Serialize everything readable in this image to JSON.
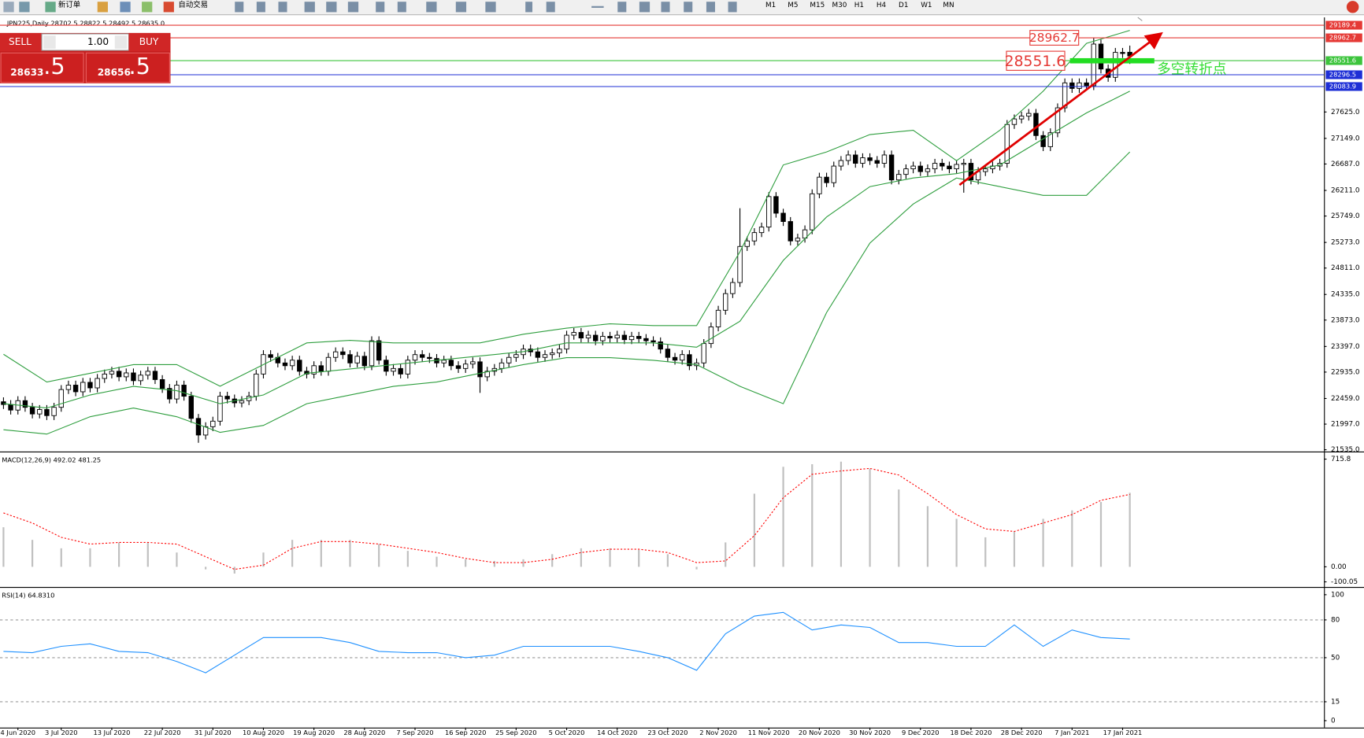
{
  "toolbar": {
    "new_order": "新订单",
    "auto_trading": "自动交易",
    "timeframes": [
      "M1",
      "M5",
      "M15",
      "M30",
      "H1",
      "H4",
      "D1",
      "W1",
      "MN"
    ]
  },
  "trade_panel": {
    "sell": "SELL",
    "lot": "1.00",
    "buy": "BUY",
    "sell_price": {
      "main": "28633",
      "fraction": ".5"
    },
    "buy_price": {
      "main": "28656",
      "fraction": ".5"
    }
  },
  "chart_data": [
    {
      "type": "candlestick",
      "title": "JPN225,Daily  28702.5 28822.5 28492.5 28635.0",
      "categories": [
        null,
        null,
        "4 Jun 2020",
        null,
        null,
        null,
        null,
        null,
        "3 Jul 2020",
        null,
        null,
        null,
        null,
        null,
        null,
        "13 Jul 2020",
        null,
        null,
        null,
        null,
        null,
        null,
        "22 Jul 2020",
        null,
        null,
        null,
        null,
        null,
        null,
        "31 Jul 2020",
        null,
        null,
        null,
        null,
        null,
        null,
        "10 Aug 2020",
        null,
        null,
        null,
        null,
        null,
        null,
        "19 Aug 2020",
        null,
        null,
        null,
        null,
        null,
        null,
        "28 Aug 2020",
        null,
        null,
        null,
        null,
        null,
        null,
        "7 Sep 2020",
        null,
        null,
        null,
        null,
        null,
        null,
        "16 Sep 2020",
        null,
        null,
        null,
        null,
        null,
        null,
        "25 Sep 2020",
        null,
        null,
        null,
        null,
        null,
        null,
        "5 Oct 2020",
        null,
        null,
        null,
        null,
        null,
        null,
        "14 Oct 2020",
        null,
        null,
        null,
        null,
        null,
        null,
        "23 Oct 2020",
        null,
        null,
        null,
        null,
        null,
        null,
        "2 Nov 2020",
        null,
        null,
        null,
        null,
        null,
        null,
        "11 Nov 2020",
        null,
        null,
        null,
        null,
        null,
        null,
        "20 Nov 2020",
        null,
        null,
        null,
        null,
        null,
        null,
        "30 Nov 2020",
        null,
        null,
        null,
        null,
        null,
        null,
        "9 Dec 2020",
        null,
        null,
        null,
        null,
        null,
        null,
        "18 Dec 2020",
        null,
        null,
        null,
        null,
        null,
        null,
        "28 Dec 2020",
        null,
        null,
        null,
        null,
        null,
        null,
        "7 Jan 2021",
        null,
        null,
        null,
        null,
        null,
        null,
        "17 Jan 2021",
        null
      ],
      "open": [
        22400,
        22350,
        22250,
        22420,
        22300,
        22180,
        22260,
        22150,
        22300,
        22620,
        22700,
        22580,
        22750,
        22650,
        22820,
        22900,
        22950,
        22850,
        22920,
        22780,
        22880,
        22950,
        22800,
        22640,
        22450,
        22700,
        22500,
        22100,
        21800,
        21950,
        22050,
        22500,
        22450,
        22380,
        22420,
        22500,
        22900,
        23250,
        23200,
        23100,
        23050,
        23150,
        22950,
        22900,
        23050,
        22950,
        23200,
        23300,
        23250,
        23100,
        23220,
        23050,
        23500,
        23150,
        22950,
        23000,
        22900,
        23150,
        23250,
        23200,
        23180,
        23100,
        23150,
        23050,
        23000,
        23080,
        23120,
        22850,
        22950,
        23000,
        23100,
        23200,
        23250,
        23350,
        23300,
        23200,
        23250,
        23280,
        23350,
        23600,
        23650,
        23550,
        23600,
        23500,
        23580,
        23550,
        23600,
        23520,
        23580,
        23540,
        23500,
        23480,
        23350,
        23200,
        23150,
        23250,
        23050,
        23100,
        23450,
        23750,
        24050,
        24350,
        24550,
        25200,
        25300,
        25450,
        25550,
        26100,
        25800,
        25650,
        25300,
        25350,
        25500,
        26150,
        26450,
        26350,
        26650,
        26750,
        26850,
        26700,
        26800,
        26750,
        26700,
        26850,
        26400,
        26500,
        26600,
        26650,
        26550,
        26600,
        26700,
        26650,
        26600,
        26680,
        26700,
        26400,
        26550,
        26600,
        26650,
        26700,
        27400,
        27500,
        27550,
        27600,
        27200,
        27000,
        27250,
        27700,
        28150,
        28050,
        28150,
        28100,
        28850,
        28400,
        28250,
        28700,
        28702.5
      ],
      "high": [
        22480,
        22430,
        22500,
        22500,
        22380,
        22340,
        22340,
        22380,
        22700,
        22780,
        22780,
        22830,
        22830,
        22900,
        22980,
        23030,
        23030,
        23000,
        23000,
        22960,
        23030,
        23030,
        22880,
        22720,
        22780,
        22780,
        22580,
        22180,
        22030,
        22130,
        22580,
        22580,
        22530,
        22500,
        22580,
        22980,
        23330,
        23330,
        23280,
        23180,
        23230,
        23230,
        23030,
        23130,
        23130,
        23280,
        23380,
        23380,
        23330,
        23300,
        23300,
        23580,
        23580,
        23230,
        23080,
        23080,
        23230,
        23330,
        23330,
        23280,
        23260,
        23230,
        23230,
        23130,
        23160,
        23200,
        23200,
        23030,
        23080,
        23180,
        23280,
        23330,
        23430,
        23430,
        23380,
        23330,
        23360,
        23430,
        23680,
        23730,
        23730,
        23680,
        23680,
        23660,
        23660,
        23680,
        23680,
        23660,
        23660,
        23620,
        23580,
        23560,
        23430,
        23280,
        23330,
        23330,
        23180,
        23530,
        23830,
        24130,
        24430,
        24630,
        25890,
        25380,
        25530,
        25630,
        26180,
        26180,
        25880,
        25730,
        25430,
        25580,
        26230,
        26530,
        26530,
        26730,
        26830,
        26930,
        26930,
        26880,
        26880,
        26830,
        26930,
        26930,
        26580,
        26680,
        26730,
        26730,
        26680,
        26780,
        26780,
        26730,
        26760,
        26780,
        26780,
        26630,
        26680,
        26730,
        26780,
        27480,
        27580,
        27630,
        27680,
        27680,
        27280,
        27330,
        27780,
        28230,
        28230,
        28230,
        28230,
        28960,
        28930,
        28480,
        28780,
        28780,
        28822.5
      ],
      "low": [
        22270,
        22170,
        22170,
        22220,
        22100,
        22100,
        22070,
        22070,
        22220,
        22540,
        22500,
        22500,
        22570,
        22570,
        22740,
        22820,
        22770,
        22770,
        22700,
        22700,
        22800,
        22720,
        22560,
        22370,
        22370,
        22420,
        22020,
        21660,
        21720,
        21870,
        21970,
        22370,
        22300,
        22300,
        22340,
        22420,
        22820,
        23120,
        23020,
        22970,
        22970,
        22870,
        22820,
        22820,
        22870,
        22870,
        23120,
        23170,
        23020,
        23020,
        22970,
        22970,
        23070,
        22870,
        22870,
        22820,
        22820,
        23070,
        23120,
        23100,
        23020,
        23020,
        22970,
        22920,
        22920,
        23000,
        22560,
        22770,
        22870,
        22920,
        23020,
        23120,
        23170,
        23220,
        23120,
        23120,
        23170,
        23200,
        23270,
        23520,
        23470,
        23470,
        23420,
        23420,
        23470,
        23470,
        23440,
        23440,
        23460,
        23420,
        23400,
        23270,
        23120,
        23070,
        23070,
        22970,
        22970,
        23020,
        23370,
        23670,
        23970,
        24270,
        24470,
        25120,
        25220,
        25370,
        25470,
        25720,
        25570,
        25220,
        25220,
        25270,
        25420,
        26070,
        26270,
        26270,
        26570,
        26670,
        26620,
        26620,
        26670,
        26620,
        26620,
        26320,
        26320,
        26420,
        26520,
        26470,
        26470,
        26520,
        26570,
        26520,
        26520,
        26170,
        26320,
        26320,
        26470,
        26520,
        26570,
        26620,
        27320,
        27420,
        27470,
        27120,
        26920,
        26920,
        27170,
        27620,
        27970,
        27970,
        28020,
        28020,
        28320,
        28170,
        28170,
        28600,
        28492.5
      ],
      "close": [
        22350,
        22250,
        22420,
        22300,
        22180,
        22260,
        22150,
        22300,
        22620,
        22700,
        22580,
        22750,
        22650,
        22820,
        22900,
        22950,
        22850,
        22920,
        22780,
        22880,
        22950,
        22800,
        22640,
        22450,
        22700,
        22500,
        22100,
        21800,
        21950,
        22050,
        22500,
        22450,
        22380,
        22420,
        22500,
        22900,
        23250,
        23200,
        23100,
        23050,
        23150,
        22950,
        22900,
        23050,
        22950,
        23200,
        23300,
        23250,
        23100,
        23220,
        23050,
        23500,
        23150,
        22950,
        23000,
        22900,
        23150,
        23250,
        23200,
        23180,
        23100,
        23150,
        23050,
        23000,
        23080,
        23120,
        22850,
        22950,
        23000,
        23100,
        23200,
        23250,
        23350,
        23300,
        23200,
        23250,
        23280,
        23350,
        23600,
        23650,
        23550,
        23600,
        23500,
        23580,
        23550,
        23600,
        23520,
        23580,
        23540,
        23500,
        23480,
        23350,
        23200,
        23150,
        23250,
        23050,
        23100,
        23450,
        23750,
        24050,
        24350,
        24550,
        25200,
        25300,
        25450,
        25550,
        26100,
        25800,
        25650,
        25300,
        25350,
        25500,
        26150,
        26450,
        26350,
        26650,
        26750,
        26850,
        26700,
        26800,
        26750,
        26700,
        26850,
        26400,
        26500,
        26600,
        26650,
        26550,
        26600,
        26700,
        26650,
        26600,
        26680,
        26700,
        26400,
        26550,
        26600,
        26650,
        26700,
        27400,
        27500,
        27550,
        27600,
        27200,
        27000,
        27250,
        27700,
        28150,
        28050,
        28150,
        28100,
        28850,
        28400,
        28250,
        28700,
        28680,
        28635
      ],
      "up_color": "#ffffff",
      "down_color": "#000000",
      "bollinger": {
        "color": "#2e9e3e",
        "x": [
          0,
          6,
          12,
          18,
          24,
          30,
          36,
          42,
          48,
          54,
          60,
          66,
          72,
          78,
          84,
          90,
          96,
          102,
          108,
          114,
          120,
          126,
          132,
          138,
          144,
          150,
          156
        ],
        "upper": [
          23257,
          22756,
          22913,
          23070,
          23070,
          22680,
          23070,
          23461,
          23508,
          23461,
          23461,
          23461,
          23617,
          23727,
          23805,
          23774,
          23774,
          25105,
          26670,
          26905,
          27218,
          27296,
          26748,
          27296,
          28000,
          28862,
          29096
        ],
        "middle": [
          22365,
          22287,
          22522,
          22678,
          22600,
          22365,
          22522,
          22913,
          22991,
          23070,
          23148,
          23226,
          23304,
          23461,
          23461,
          23461,
          23383,
          23852,
          24948,
          25731,
          26279,
          26435,
          26514,
          26670,
          27140,
          27609,
          28000
        ],
        "lower": [
          21895,
          21817,
          22130,
          22287,
          22130,
          21848,
          21973,
          22365,
          22522,
          22678,
          22756,
          22913,
          23070,
          23195,
          23195,
          23148,
          23070,
          22678,
          22365,
          24009,
          25261,
          25966,
          26435,
          26279,
          26122,
          26122,
          26905
        ]
      },
      "levels": [
        {
          "value": 29189.4,
          "color": "#e53935"
        },
        {
          "value": 28962.7,
          "color": "#e53935"
        },
        {
          "value": 28551.6,
          "color": "#3cc43c"
        },
        {
          "value": 28296.5,
          "color": "#1e2fd6"
        },
        {
          "value": 28083.9,
          "color": "#1e2fd6"
        }
      ],
      "annotations": {
        "boxes": [
          28962.7,
          28551.6
        ],
        "note": "多空转折点"
      },
      "ylim": [
        21519,
        29300
      ],
      "yticks": [
        {
          "value": 21535,
          "label": "21535.0"
        },
        {
          "value": 21997,
          "label": "21997.0"
        },
        {
          "value": 22459,
          "label": "22459.0"
        },
        {
          "value": 22935,
          "label": "22935.0"
        },
        {
          "value": 23397,
          "label": "23397.0"
        },
        {
          "value": 23873,
          "label": "23873.0"
        },
        {
          "value": 24335,
          "label": "24335.0"
        },
        {
          "value": 24811,
          "label": "24811.0"
        },
        {
          "value": 25273,
          "label": "25273.0"
        },
        {
          "value": 25749,
          "label": "25749.0"
        },
        {
          "value": 26211,
          "label": "26211.0"
        },
        {
          "value": 26687,
          "label": "26687.0"
        },
        {
          "value": 27149,
          "label": "27149.0"
        },
        {
          "value": 27625,
          "label": "27625.0"
        }
      ]
    },
    {
      "type": "macd",
      "title": "MACD(12,26,9) 492.02 481.25",
      "x": [
        0,
        4,
        8,
        12,
        16,
        20,
        24,
        28,
        32,
        36,
        40,
        44,
        48,
        52,
        56,
        60,
        64,
        68,
        72,
        76,
        80,
        84,
        88,
        92,
        96,
        100,
        104,
        108,
        112,
        116,
        120,
        124,
        128,
        132,
        136,
        140,
        144,
        148,
        152,
        156
      ],
      "histogram": {
        "color": "#c0c0c0",
        "values": [
          263,
          179,
          123,
          123,
          162,
          162,
          95,
          -17,
          -45,
          95,
          179,
          179,
          179,
          151,
          106,
          67,
          50,
          39,
          50,
          84,
          123,
          123,
          112,
          84,
          -17,
          162,
          486,
          665,
          682,
          699,
          654,
          514,
          403,
          319,
          196,
          235,
          319,
          375,
          431,
          492.02
        ]
      },
      "signal": {
        "color": "#ff0000",
        "values": [
          358,
          291,
          196,
          151,
          162,
          162,
          151,
          67,
          -17,
          11,
          123,
          168,
          168,
          151,
          123,
          95,
          56,
          28,
          28,
          50,
          95,
          117,
          117,
          95,
          28,
          39,
          207,
          459,
          615,
          637,
          654,
          610,
          486,
          347,
          252,
          235,
          291,
          347,
          442,
          481.25
        ]
      },
      "ylim": [
        -128,
        755
      ],
      "yticks": [
        715.8,
        {
          "value": 0,
          "label": "0.00"
        },
        -100.05
      ]
    },
    {
      "type": "rsi",
      "title": "RSI(14) 64.8310",
      "x": [
        0,
        4,
        8,
        12,
        16,
        20,
        24,
        28,
        32,
        36,
        40,
        44,
        48,
        52,
        56,
        60,
        64,
        68,
        72,
        76,
        80,
        84,
        88,
        92,
        96,
        100,
        104,
        108,
        112,
        116,
        120,
        124,
        128,
        132,
        136,
        140,
        144,
        148,
        152,
        156
      ],
      "color": "#1e90ff",
      "values": [
        55,
        54,
        59,
        61,
        55,
        54,
        47,
        38,
        52,
        66,
        66,
        66,
        62,
        55,
        54,
        54,
        50,
        52,
        59,
        59,
        59,
        59,
        55,
        50,
        40,
        69,
        83,
        86,
        72,
        76,
        74,
        62,
        62,
        59,
        59,
        76,
        59,
        72,
        66,
        64.831
      ],
      "ylim": [
        -5.5,
        104.8
      ],
      "yticks": [
        100,
        80,
        50,
        15,
        0
      ]
    }
  ]
}
